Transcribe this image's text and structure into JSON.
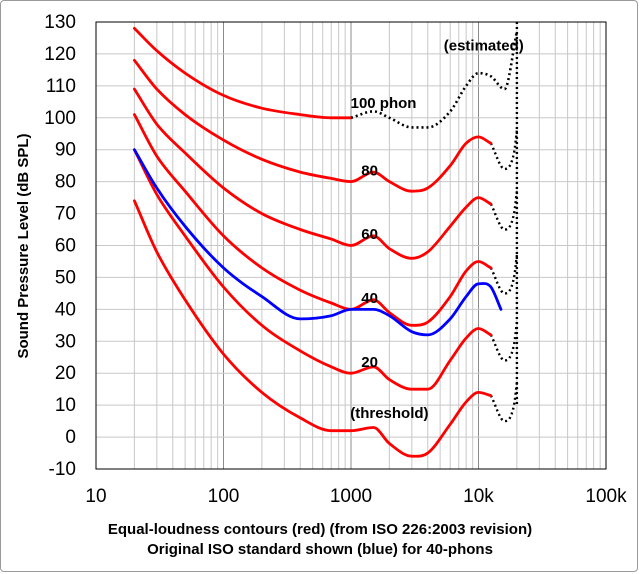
{
  "chart_data": {
    "type": "line",
    "title": "",
    "xlabel": "Equal-loudness contours (red) (from ISO 226:2003 revision)",
    "xlabel_line2": "Original ISO standard shown (blue) for 40-phons",
    "ylabel": "Sound Pressure Level (dB SPL)",
    "xscale": "log",
    "xlim": [
      10,
      100000
    ],
    "ylim": [
      -10,
      130
    ],
    "x_tick_labels": [
      "10",
      "100",
      "1000",
      "10k",
      "100k"
    ],
    "y_tick_labels": [
      "130",
      "120",
      "110",
      "100",
      "90",
      "80",
      "70",
      "60",
      "50",
      "40",
      "30",
      "20",
      "10",
      "0",
      "-10"
    ],
    "grid": true,
    "annotations": [
      "(estimated)",
      "100 phon",
      "80",
      "60",
      "40",
      "20",
      "(threshold)"
    ],
    "colors": {
      "iso226_2003": "#ff0000",
      "original_iso": "#0000ff",
      "estimated": "#000000"
    },
    "series": [
      {
        "curve": "threshold",
        "color": "#ff0000",
        "x": [
          20,
          30,
          50,
          100,
          200,
          400,
          700,
          1000,
          1500,
          2000,
          3000,
          4000,
          6000,
          8000,
          10000,
          12500
        ],
        "y": [
          74,
          58,
          43,
          26,
          14,
          6,
          2,
          2,
          3,
          -2,
          -6,
          -5,
          4,
          11,
          14,
          13
        ]
      },
      {
        "curve": "20 phon",
        "color": "#ff0000",
        "x": [
          20,
          30,
          50,
          100,
          200,
          400,
          700,
          1000,
          1500,
          2000,
          3000,
          4000,
          6000,
          8000,
          10000,
          12500
        ],
        "y": [
          90,
          76,
          63,
          47,
          35,
          27,
          22,
          20,
          22,
          18,
          15,
          15,
          24,
          31,
          34,
          32
        ]
      },
      {
        "curve": "40 phon",
        "color": "#ff0000",
        "x": [
          20,
          30,
          50,
          100,
          200,
          400,
          700,
          1000,
          1500,
          2000,
          3000,
          4000,
          6000,
          8000,
          10000,
          12500
        ],
        "y": [
          101,
          88,
          77,
          63,
          53,
          46,
          42,
          40,
          43,
          39,
          35,
          36,
          44,
          52,
          55,
          53
        ]
      },
      {
        "curve": "60 phon",
        "color": "#ff0000",
        "x": [
          20,
          30,
          50,
          100,
          200,
          400,
          700,
          1000,
          1500,
          2000,
          3000,
          4000,
          6000,
          8000,
          10000,
          12500
        ],
        "y": [
          109,
          98,
          89,
          78,
          70,
          65,
          62,
          60,
          63,
          59,
          56,
          58,
          66,
          72,
          75,
          73
        ]
      },
      {
        "curve": "80 phon",
        "color": "#ff0000",
        "x": [
          20,
          30,
          50,
          100,
          200,
          400,
          700,
          1000,
          1500,
          2000,
          3000,
          4000,
          6000,
          8000,
          10000,
          12500
        ],
        "y": [
          118,
          109,
          101,
          93,
          87,
          83,
          81,
          80,
          83,
          80,
          77,
          78,
          85,
          92,
          94,
          92
        ]
      },
      {
        "curve": "100 phon",
        "color": "#ff0000",
        "x": [
          20,
          30,
          50,
          100,
          200,
          400,
          700,
          1000
        ],
        "y": [
          128,
          121,
          114,
          107,
          103,
          101,
          100,
          100
        ]
      },
      {
        "curve": "100 phon (estimated)",
        "color": "#000000",
        "dashed": true,
        "x": [
          1000,
          1500,
          2000,
          3000,
          4000,
          6000,
          8000,
          10000,
          12500,
          16000,
          20000
        ],
        "y": [
          100,
          102,
          100,
          97,
          97,
          102,
          110,
          114,
          113,
          109,
          127
        ]
      },
      {
        "curve": "original ISO 40 phon",
        "color": "#0000ff",
        "x": [
          20,
          30,
          50,
          100,
          200,
          400,
          700,
          1000,
          1500,
          2000,
          3000,
          4000,
          6000,
          8000,
          10000,
          12500,
          15000
        ],
        "y": [
          90,
          78,
          66,
          53,
          44,
          37,
          38,
          40,
          40,
          38,
          33,
          32,
          37,
          44,
          48,
          47,
          40
        ]
      }
    ]
  }
}
